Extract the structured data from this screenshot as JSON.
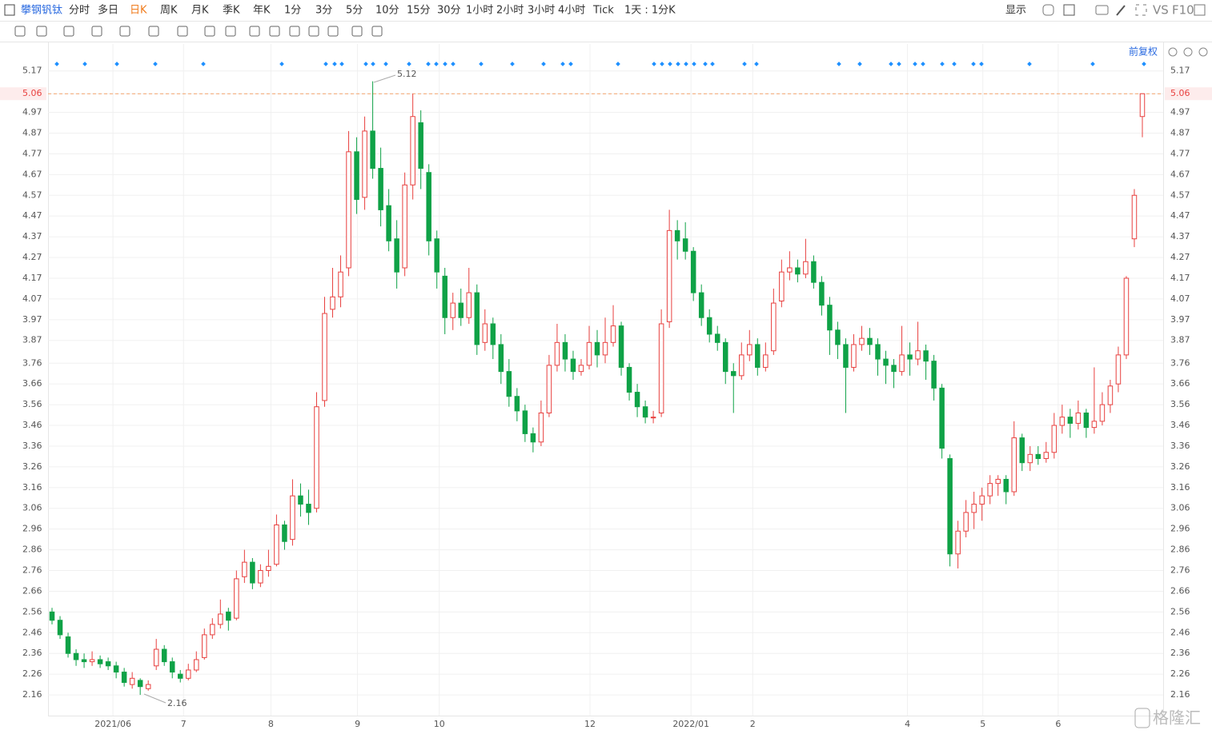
{
  "toolbar": {
    "stock": "攀钢钒钛",
    "periods": [
      "分时",
      "多日",
      "日K",
      "周K",
      "月K",
      "季K",
      "年K",
      "1分",
      "3分",
      "5分",
      "10分",
      "15分",
      "30分",
      "1小时",
      "2小时",
      "3小时",
      "4小时",
      "Tick",
      "1天 : 1分K"
    ],
    "active": "日K",
    "display": "显示",
    "vs": "VS",
    "f10": "F10"
  },
  "chart_data": {
    "type": "candlestick",
    "adjust": "前复权",
    "up_color": "#e8403f",
    "down_color": "#0fa247",
    "ohlc": [
      [
        2.56,
        2.58,
        2.5,
        2.52
      ],
      [
        2.52,
        2.54,
        2.43,
        2.45
      ],
      [
        2.44,
        2.46,
        2.34,
        2.36
      ],
      [
        2.36,
        2.38,
        2.3,
        2.33
      ],
      [
        2.33,
        2.36,
        2.29,
        2.32
      ],
      [
        2.32,
        2.37,
        2.3,
        2.33
      ],
      [
        2.33,
        2.35,
        2.29,
        2.31
      ],
      [
        2.32,
        2.34,
        2.28,
        2.3
      ],
      [
        2.3,
        2.32,
        2.24,
        2.27
      ],
      [
        2.27,
        2.29,
        2.2,
        2.22
      ],
      [
        2.21,
        2.27,
        2.19,
        2.24
      ],
      [
        2.23,
        2.24,
        2.16,
        2.2
      ],
      [
        2.19,
        2.23,
        2.18,
        2.21
      ],
      [
        2.3,
        2.43,
        2.28,
        2.38
      ],
      [
        2.38,
        2.4,
        2.3,
        2.32
      ],
      [
        2.32,
        2.34,
        2.24,
        2.27
      ],
      [
        2.26,
        2.28,
        2.22,
        2.24
      ],
      [
        2.24,
        2.31,
        2.23,
        2.28
      ],
      [
        2.28,
        2.37,
        2.27,
        2.33
      ],
      [
        2.34,
        2.48,
        2.33,
        2.45
      ],
      [
        2.45,
        2.53,
        2.43,
        2.5
      ],
      [
        2.5,
        2.62,
        2.48,
        2.55
      ],
      [
        2.56,
        2.58,
        2.47,
        2.52
      ],
      [
        2.53,
        2.76,
        2.52,
        2.72
      ],
      [
        2.73,
        2.86,
        2.7,
        2.8
      ],
      [
        2.8,
        2.82,
        2.67,
        2.7
      ],
      [
        2.7,
        2.79,
        2.68,
        2.76
      ],
      [
        2.76,
        2.86,
        2.73,
        2.78
      ],
      [
        2.79,
        3.03,
        2.78,
        2.98
      ],
      [
        2.98,
        3.0,
        2.86,
        2.9
      ],
      [
        2.91,
        3.2,
        2.88,
        3.12
      ],
      [
        3.12,
        3.18,
        3.02,
        3.08
      ],
      [
        3.08,
        3.15,
        2.98,
        3.04
      ],
      [
        3.06,
        3.62,
        3.04,
        3.55
      ],
      [
        3.58,
        4.08,
        3.55,
        4.0
      ],
      [
        4.02,
        4.22,
        3.98,
        4.08
      ],
      [
        4.08,
        4.28,
        4.03,
        4.2
      ],
      [
        4.22,
        4.88,
        4.18,
        4.78
      ],
      [
        4.78,
        4.85,
        4.48,
        4.55
      ],
      [
        4.56,
        4.95,
        4.5,
        4.88
      ],
      [
        4.88,
        5.12,
        4.65,
        4.7
      ],
      [
        4.7,
        4.8,
        4.42,
        4.5
      ],
      [
        4.52,
        4.6,
        4.3,
        4.35
      ],
      [
        4.36,
        4.45,
        4.12,
        4.2
      ],
      [
        4.22,
        4.68,
        4.18,
        4.62
      ],
      [
        4.62,
        5.06,
        4.55,
        4.95
      ],
      [
        4.92,
        4.98,
        4.6,
        4.7
      ],
      [
        4.68,
        4.72,
        4.28,
        4.35
      ],
      [
        4.36,
        4.4,
        4.12,
        4.2
      ],
      [
        4.18,
        4.22,
        3.9,
        3.98
      ],
      [
        3.98,
        4.1,
        3.92,
        4.05
      ],
      [
        4.05,
        4.12,
        3.94,
        3.98
      ],
      [
        3.98,
        4.22,
        3.95,
        4.1
      ],
      [
        4.1,
        4.14,
        3.8,
        3.85
      ],
      [
        3.86,
        4.02,
        3.82,
        3.95
      ],
      [
        3.95,
        3.98,
        3.78,
        3.85
      ],
      [
        3.85,
        3.9,
        3.66,
        3.72
      ],
      [
        3.72,
        3.78,
        3.55,
        3.6
      ],
      [
        3.6,
        3.64,
        3.48,
        3.53
      ],
      [
        3.53,
        3.56,
        3.38,
        3.42
      ],
      [
        3.42,
        3.45,
        3.33,
        3.38
      ],
      [
        3.38,
        3.58,
        3.36,
        3.52
      ],
      [
        3.52,
        3.8,
        3.5,
        3.75
      ],
      [
        3.75,
        3.95,
        3.72,
        3.86
      ],
      [
        3.86,
        3.9,
        3.72,
        3.78
      ],
      [
        3.78,
        3.82,
        3.68,
        3.72
      ],
      [
        3.72,
        3.78,
        3.7,
        3.75
      ],
      [
        3.75,
        3.94,
        3.73,
        3.86
      ],
      [
        3.86,
        3.92,
        3.74,
        3.8
      ],
      [
        3.8,
        3.98,
        3.76,
        3.86
      ],
      [
        3.86,
        4.04,
        3.84,
        3.94
      ],
      [
        3.94,
        3.96,
        3.7,
        3.74
      ],
      [
        3.74,
        3.76,
        3.58,
        3.62
      ],
      [
        3.62,
        3.66,
        3.5,
        3.55
      ],
      [
        3.55,
        3.58,
        3.47,
        3.5
      ],
      [
        3.5,
        3.53,
        3.47,
        3.5
      ],
      [
        3.52,
        4.02,
        3.5,
        3.95
      ],
      [
        3.96,
        4.5,
        3.93,
        4.4
      ],
      [
        4.4,
        4.45,
        4.26,
        4.35
      ],
      [
        4.36,
        4.44,
        4.26,
        4.3
      ],
      [
        4.3,
        4.32,
        4.06,
        4.1
      ],
      [
        4.1,
        4.14,
        3.94,
        3.98
      ],
      [
        3.98,
        4.02,
        3.86,
        3.9
      ],
      [
        3.9,
        3.94,
        3.82,
        3.86
      ],
      [
        3.86,
        3.88,
        3.66,
        3.72
      ],
      [
        3.72,
        3.76,
        3.52,
        3.7
      ],
      [
        3.7,
        3.86,
        3.68,
        3.8
      ],
      [
        3.8,
        3.92,
        3.77,
        3.85
      ],
      [
        3.85,
        3.88,
        3.7,
        3.74
      ],
      [
        3.74,
        3.86,
        3.72,
        3.8
      ],
      [
        3.82,
        4.12,
        3.8,
        4.05
      ],
      [
        4.06,
        4.26,
        4.03,
        4.2
      ],
      [
        4.2,
        4.3,
        4.16,
        4.22
      ],
      [
        4.22,
        4.26,
        4.15,
        4.19
      ],
      [
        4.19,
        4.36,
        4.17,
        4.25
      ],
      [
        4.25,
        4.28,
        4.12,
        4.15
      ],
      [
        4.15,
        4.18,
        3.99,
        4.04
      ],
      [
        4.04,
        4.08,
        3.8,
        3.92
      ],
      [
        3.92,
        3.96,
        3.78,
        3.85
      ],
      [
        3.85,
        3.88,
        3.52,
        3.74
      ],
      [
        3.74,
        3.9,
        3.72,
        3.85
      ],
      [
        3.85,
        3.94,
        3.82,
        3.88
      ],
      [
        3.88,
        3.93,
        3.8,
        3.85
      ],
      [
        3.85,
        3.88,
        3.7,
        3.78
      ],
      [
        3.78,
        3.82,
        3.66,
        3.75
      ],
      [
        3.75,
        3.78,
        3.64,
        3.72
      ],
      [
        3.72,
        3.94,
        3.7,
        3.8
      ],
      [
        3.8,
        3.86,
        3.7,
        3.78
      ],
      [
        3.78,
        3.96,
        3.75,
        3.82
      ],
      [
        3.82,
        3.85,
        3.68,
        3.77
      ],
      [
        3.77,
        3.8,
        3.58,
        3.64
      ],
      [
        3.64,
        3.66,
        3.3,
        3.35
      ],
      [
        3.3,
        3.32,
        2.78,
        2.84
      ],
      [
        2.84,
        3.0,
        2.77,
        2.95
      ],
      [
        2.95,
        3.1,
        2.92,
        3.04
      ],
      [
        3.04,
        3.14,
        2.96,
        3.08
      ],
      [
        3.08,
        3.16,
        3.0,
        3.12
      ],
      [
        3.12,
        3.22,
        3.08,
        3.18
      ],
      [
        3.18,
        3.22,
        3.12,
        3.2
      ],
      [
        3.2,
        3.22,
        3.08,
        3.14
      ],
      [
        3.14,
        3.48,
        3.12,
        3.4
      ],
      [
        3.4,
        3.42,
        3.24,
        3.28
      ],
      [
        3.28,
        3.36,
        3.24,
        3.32
      ],
      [
        3.32,
        3.36,
        3.27,
        3.3
      ],
      [
        3.3,
        3.38,
        3.28,
        3.33
      ],
      [
        3.33,
        3.52,
        3.3,
        3.46
      ],
      [
        3.46,
        3.56,
        3.42,
        3.5
      ],
      [
        3.5,
        3.54,
        3.4,
        3.47
      ],
      [
        3.47,
        3.58,
        3.44,
        3.52
      ],
      [
        3.52,
        3.54,
        3.4,
        3.45
      ],
      [
        3.45,
        3.74,
        3.42,
        3.48
      ],
      [
        3.48,
        3.62,
        3.46,
        3.56
      ],
      [
        3.56,
        3.68,
        3.52,
        3.65
      ],
      [
        3.66,
        3.84,
        3.62,
        3.8
      ],
      [
        3.8,
        4.18,
        3.78,
        4.17
      ],
      [
        4.36,
        4.6,
        4.32,
        4.57
      ],
      [
        4.95,
        5.06,
        4.85,
        5.06
      ]
    ],
    "xlim": [
      0,
      137
    ],
    "xticks": [
      {
        "value": 8.1,
        "label": "2021/06"
      },
      {
        "value": 16.9,
        "label": "7"
      },
      {
        "value": 27.8,
        "label": "8"
      },
      {
        "value": 38.6,
        "label": "9"
      },
      {
        "value": 48.8,
        "label": "10"
      },
      {
        "value": 67.6,
        "label": "12"
      },
      {
        "value": 80.2,
        "label": "2022/01"
      },
      {
        "value": 87.9,
        "label": "2"
      },
      {
        "value": 107.2,
        "label": "4"
      },
      {
        "value": 116.6,
        "label": "5"
      },
      {
        "value": 126,
        "label": "6"
      }
    ],
    "ylim": [
      2.06,
      5.3
    ],
    "yticks": [
      5.17,
      5.06,
      4.97,
      4.87,
      4.77,
      4.67,
      4.57,
      4.47,
      4.37,
      4.27,
      4.17,
      4.07,
      3.97,
      3.87,
      3.76,
      3.66,
      3.56,
      3.46,
      3.36,
      3.26,
      3.16,
      3.06,
      2.96,
      2.86,
      2.76,
      2.66,
      2.56,
      2.46,
      2.36,
      2.26,
      2.16
    ],
    "current_price": 5.06,
    "max_label": "5.12",
    "min_label": "2.16",
    "grid": true
  },
  "watermark": "格隆汇"
}
